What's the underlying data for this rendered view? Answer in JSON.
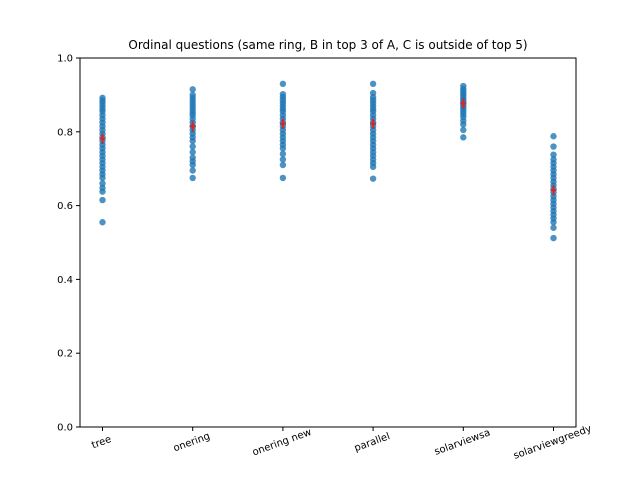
{
  "chart_data": {
    "type": "scatter",
    "title": "Ordinal questions (same ring, B in top 3 of A, C is outside of top 5)",
    "xlabel": "",
    "ylabel": "",
    "categories": [
      "tree",
      "onering",
      "onering new",
      "parallel",
      "solarviewsa",
      "solarviewgreedy"
    ],
    "ylim": [
      0.0,
      1.0
    ],
    "yticks": [
      0.0,
      0.2,
      0.4,
      0.6,
      0.8,
      1.0
    ],
    "ytick_labels": [
      "0.0",
      "0.2",
      "0.4",
      "0.6",
      "0.8",
      "1.0"
    ],
    "grid": false,
    "point_color": "#1f77b4",
    "mean_color": "#d62728",
    "series": [
      {
        "category": "tree",
        "values": [
          0.555,
          0.615,
          0.638,
          0.648,
          0.66,
          0.675,
          0.685,
          0.695,
          0.705,
          0.715,
          0.725,
          0.735,
          0.745,
          0.755,
          0.765,
          0.775,
          0.785,
          0.795,
          0.805,
          0.815,
          0.825,
          0.835,
          0.845,
          0.855,
          0.862,
          0.87,
          0.878,
          0.885,
          0.892
        ],
        "mean": 0.782
      },
      {
        "category": "onering",
        "values": [
          0.675,
          0.695,
          0.71,
          0.72,
          0.73,
          0.745,
          0.76,
          0.775,
          0.785,
          0.795,
          0.805,
          0.815,
          0.825,
          0.835,
          0.845,
          0.852,
          0.86,
          0.868,
          0.876,
          0.884,
          0.892,
          0.9,
          0.915
        ],
        "mean": 0.815
      },
      {
        "category": "onering new",
        "values": [
          0.675,
          0.71,
          0.725,
          0.74,
          0.755,
          0.765,
          0.775,
          0.785,
          0.795,
          0.805,
          0.815,
          0.825,
          0.835,
          0.845,
          0.855,
          0.862,
          0.87,
          0.878,
          0.886,
          0.894,
          0.902,
          0.93
        ],
        "mean": 0.822
      },
      {
        "category": "parallel",
        "values": [
          0.673,
          0.705,
          0.715,
          0.725,
          0.735,
          0.745,
          0.755,
          0.765,
          0.775,
          0.785,
          0.795,
          0.805,
          0.815,
          0.825,
          0.835,
          0.845,
          0.855,
          0.862,
          0.87,
          0.878,
          0.886,
          0.894,
          0.905,
          0.93
        ],
        "mean": 0.822
      },
      {
        "category": "solarviewsa",
        "values": [
          0.785,
          0.805,
          0.82,
          0.83,
          0.84,
          0.848,
          0.855,
          0.862,
          0.868,
          0.874,
          0.88,
          0.886,
          0.892,
          0.898,
          0.904,
          0.91,
          0.916,
          0.924
        ],
        "mean": 0.877
      },
      {
        "category": "solarviewgreedy",
        "values": [
          0.512,
          0.54,
          0.555,
          0.565,
          0.575,
          0.585,
          0.595,
          0.605,
          0.615,
          0.625,
          0.635,
          0.645,
          0.655,
          0.665,
          0.675,
          0.685,
          0.695,
          0.705,
          0.715,
          0.725,
          0.738,
          0.76,
          0.788
        ],
        "mean": 0.642
      }
    ]
  }
}
